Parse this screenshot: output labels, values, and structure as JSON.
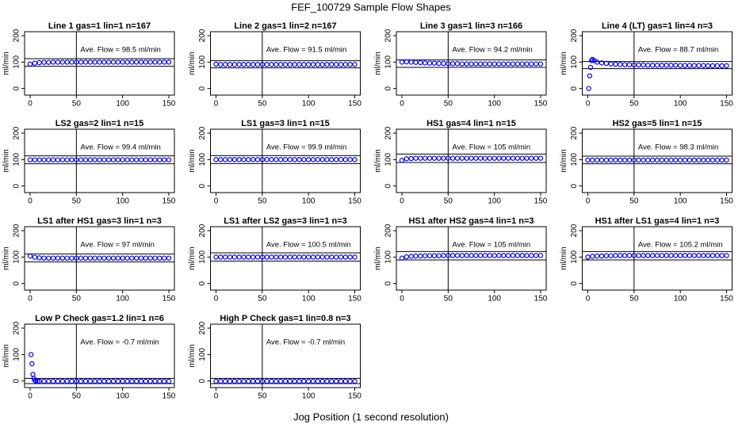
{
  "title": "FEF_100729  Sample Flow Shapes",
  "xlabel": "Jog Position (1 second resolution)",
  "chart_data": [
    {
      "type": "scatter",
      "title": "Line 1 gas=1 lin=1 n=167",
      "annotation": "Ave. Flow = 98.5 ml/min",
      "ylabel": "ml/min",
      "color": "#0000ff",
      "x": [
        0,
        5,
        10,
        15,
        20,
        25,
        30,
        35,
        40,
        45,
        50,
        55,
        60,
        65,
        70,
        75,
        80,
        85,
        90,
        95,
        100,
        105,
        110,
        115,
        120,
        125,
        130,
        135,
        140,
        145,
        150
      ],
      "values": [
        92,
        96,
        98,
        99,
        99,
        100,
        100,
        100,
        100,
        100,
        100,
        100,
        100,
        100,
        100,
        100,
        100,
        100,
        100,
        100,
        100,
        100,
        100,
        100,
        100,
        100,
        100,
        100,
        100,
        100,
        100
      ],
      "xlim": [
        -6,
        156
      ],
      "ylim": [
        -25,
        215
      ],
      "xticks": [
        0,
        50,
        100,
        150
      ],
      "yticks": [
        0,
        100,
        200
      ],
      "vline": 50,
      "hlines": [
        113,
        84
      ]
    },
    {
      "type": "scatter",
      "title": "Line 2 gas=1 lin=2 n=167",
      "annotation": "Ave. Flow = 91.5 ml/min",
      "ylabel": "ml/min",
      "color": "#0000ff",
      "x": [
        0,
        5,
        10,
        15,
        20,
        25,
        30,
        35,
        40,
        45,
        50,
        55,
        60,
        65,
        70,
        75,
        80,
        85,
        90,
        95,
        100,
        105,
        110,
        115,
        120,
        125,
        130,
        135,
        140,
        145,
        150
      ],
      "values": [
        92,
        91,
        91,
        91,
        91,
        91,
        91,
        91,
        91,
        91,
        91,
        91,
        91,
        91,
        91,
        91,
        91,
        91,
        91,
        91,
        91,
        91,
        91,
        91,
        91,
        91,
        91,
        91,
        91,
        91,
        91
      ],
      "xlim": [
        -6,
        156
      ],
      "ylim": [
        -25,
        215
      ],
      "xticks": [
        0,
        50,
        100,
        150
      ],
      "yticks": [
        0,
        100,
        200
      ],
      "vline": 50,
      "hlines": [
        105,
        78
      ]
    },
    {
      "type": "scatter",
      "title": "Line 3 gas=1 lin=3 n=166",
      "annotation": "Ave. Flow = 94.2 ml/min",
      "ylabel": "ml/min",
      "color": "#0000ff",
      "x": [
        0,
        5,
        10,
        15,
        20,
        25,
        30,
        35,
        40,
        45,
        50,
        55,
        60,
        65,
        70,
        75,
        80,
        85,
        90,
        95,
        100,
        105,
        110,
        115,
        120,
        125,
        130,
        135,
        140,
        145,
        150
      ],
      "values": [
        100,
        101,
        100,
        99,
        98,
        97,
        96,
        96,
        95,
        95,
        94,
        94,
        94,
        93,
        93,
        93,
        93,
        93,
        93,
        93,
        93,
        93,
        93,
        93,
        93,
        93,
        93,
        93,
        93,
        93,
        93
      ],
      "xlim": [
        -6,
        156
      ],
      "ylim": [
        -25,
        215
      ],
      "xticks": [
        0,
        50,
        100,
        150
      ],
      "yticks": [
        0,
        100,
        200
      ],
      "vline": 50,
      "hlines": [
        108,
        80
      ]
    },
    {
      "type": "scatter",
      "title": "Line 4 (LT) gas=1 lin=4 n=3",
      "annotation": "Ave. Flow = 88.7 ml/min",
      "ylabel": "ml/min",
      "color": "#0000ff",
      "x": [
        1,
        2,
        3,
        4,
        5,
        7,
        10,
        15,
        20,
        25,
        30,
        35,
        40,
        45,
        50,
        55,
        60,
        65,
        70,
        75,
        80,
        85,
        90,
        95,
        100,
        105,
        110,
        115,
        120,
        125,
        130,
        135,
        140,
        145,
        150
      ],
      "values": [
        0,
        48,
        80,
        106,
        110,
        106,
        100,
        97,
        95,
        93,
        92,
        91,
        90,
        90,
        89,
        89,
        89,
        88,
        88,
        88,
        88,
        88,
        88,
        88,
        87,
        87,
        87,
        87,
        87,
        87,
        86,
        86,
        86,
        86,
        86
      ],
      "xlim": [
        -6,
        156
      ],
      "ylim": [
        -25,
        215
      ],
      "xticks": [
        0,
        50,
        100,
        150
      ],
      "yticks": [
        0,
        100,
        200
      ],
      "vline": 50,
      "hlines": [
        102,
        75
      ]
    },
    {
      "type": "scatter",
      "title": "LS2 gas=2 lin=1 n=15",
      "annotation": "Ave. Flow = 99.4 ml/min",
      "ylabel": "ml/min",
      "color": "#0000ff",
      "x": [
        0,
        5,
        10,
        15,
        20,
        25,
        30,
        35,
        40,
        45,
        50,
        55,
        60,
        65,
        70,
        75,
        80,
        85,
        90,
        95,
        100,
        105,
        110,
        115,
        120,
        125,
        130,
        135,
        140,
        145,
        150
      ],
      "values": [
        99,
        99,
        99,
        99,
        99,
        99,
        99,
        99,
        99,
        99,
        99,
        99,
        99,
        99,
        99,
        99,
        99,
        99,
        99,
        99,
        99,
        99,
        99,
        99,
        99,
        99,
        99,
        99,
        99,
        99,
        99
      ],
      "xlim": [
        -6,
        156
      ],
      "ylim": [
        -25,
        215
      ],
      "xticks": [
        0,
        50,
        100,
        150
      ],
      "yticks": [
        0,
        100,
        200
      ],
      "vline": 50,
      "hlines": [
        114,
        84
      ]
    },
    {
      "type": "scatter",
      "title": "LS1 gas=3 lin=1 n=15",
      "annotation": "Ave. Flow = 99.9 ml/min",
      "ylabel": "ml/min",
      "color": "#0000ff",
      "x": [
        0,
        5,
        10,
        15,
        20,
        25,
        30,
        35,
        40,
        45,
        50,
        55,
        60,
        65,
        70,
        75,
        80,
        85,
        90,
        95,
        100,
        105,
        110,
        115,
        120,
        125,
        130,
        135,
        140,
        145,
        150
      ],
      "values": [
        100,
        100,
        100,
        100,
        100,
        100,
        100,
        100,
        100,
        100,
        100,
        100,
        100,
        100,
        100,
        100,
        100,
        100,
        100,
        100,
        100,
        100,
        100,
        100,
        100,
        100,
        100,
        100,
        100,
        100,
        100
      ],
      "xlim": [
        -6,
        156
      ],
      "ylim": [
        -25,
        215
      ],
      "xticks": [
        0,
        50,
        100,
        150
      ],
      "yticks": [
        0,
        100,
        200
      ],
      "vline": 50,
      "hlines": [
        115,
        85
      ]
    },
    {
      "type": "scatter",
      "title": "HS1 gas=4 lin=1 n=15",
      "annotation": "Ave. Flow = 105 ml/min",
      "ylabel": "ml/min",
      "color": "#0000ff",
      "x": [
        0,
        5,
        10,
        15,
        20,
        25,
        30,
        35,
        40,
        45,
        50,
        55,
        60,
        65,
        70,
        75,
        80,
        85,
        90,
        95,
        100,
        105,
        110,
        115,
        120,
        125,
        130,
        135,
        140,
        145,
        150
      ],
      "values": [
        97,
        103,
        104,
        105,
        105,
        105,
        105,
        105,
        105,
        105,
        105,
        105,
        105,
        105,
        105,
        105,
        105,
        105,
        105,
        105,
        105,
        105,
        105,
        105,
        105,
        105,
        105,
        105,
        105,
        105,
        105
      ],
      "xlim": [
        -6,
        156
      ],
      "ylim": [
        -25,
        215
      ],
      "xticks": [
        0,
        50,
        100,
        150
      ],
      "yticks": [
        0,
        100,
        200
      ],
      "vline": 50,
      "hlines": [
        121,
        89
      ]
    },
    {
      "type": "scatter",
      "title": "HS2 gas=5 lin=1 n=15",
      "annotation": "Ave. Flow = 98.3 ml/min",
      "ylabel": "ml/min",
      "color": "#0000ff",
      "x": [
        0,
        5,
        10,
        15,
        20,
        25,
        30,
        35,
        40,
        45,
        50,
        55,
        60,
        65,
        70,
        75,
        80,
        85,
        90,
        95,
        100,
        105,
        110,
        115,
        120,
        125,
        130,
        135,
        140,
        145,
        150
      ],
      "values": [
        98,
        98,
        98,
        98,
        98,
        98,
        98,
        98,
        98,
        98,
        98,
        98,
        98,
        98,
        98,
        98,
        98,
        98,
        98,
        98,
        98,
        98,
        98,
        98,
        98,
        98,
        98,
        98,
        98,
        98,
        98
      ],
      "xlim": [
        -6,
        156
      ],
      "ylim": [
        -25,
        215
      ],
      "xticks": [
        0,
        50,
        100,
        150
      ],
      "yticks": [
        0,
        100,
        200
      ],
      "vline": 50,
      "hlines": [
        113,
        84
      ]
    },
    {
      "type": "scatter",
      "title": "LS1 after HS1 gas=3 lin=1 n=3",
      "annotation": "Ave. Flow = 97 ml/min",
      "ylabel": "ml/min",
      "color": "#0000ff",
      "x": [
        0,
        5,
        10,
        15,
        20,
        25,
        30,
        35,
        40,
        45,
        50,
        55,
        60,
        65,
        70,
        75,
        80,
        85,
        90,
        95,
        100,
        105,
        110,
        115,
        120,
        125,
        130,
        135,
        140,
        145,
        150
      ],
      "values": [
        104,
        99,
        97,
        96,
        96,
        96,
        96,
        96,
        96,
        96,
        96,
        96,
        96,
        96,
        96,
        96,
        96,
        96,
        96,
        96,
        96,
        96,
        96,
        96,
        96,
        96,
        96,
        96,
        96,
        96,
        96
      ],
      "xlim": [
        -6,
        156
      ],
      "ylim": [
        -25,
        215
      ],
      "xticks": [
        0,
        50,
        100,
        150
      ],
      "yticks": [
        0,
        100,
        200
      ],
      "vline": 50,
      "hlines": [
        112,
        82
      ]
    },
    {
      "type": "scatter",
      "title": "LS1 after LS2 gas=3 lin=1 n=3",
      "annotation": "Ave. Flow = 100.5 ml/min",
      "ylabel": "ml/min",
      "color": "#0000ff",
      "x": [
        0,
        5,
        10,
        15,
        20,
        25,
        30,
        35,
        40,
        45,
        50,
        55,
        60,
        65,
        70,
        75,
        80,
        85,
        90,
        95,
        100,
        105,
        110,
        115,
        120,
        125,
        130,
        135,
        140,
        145,
        150
      ],
      "values": [
        100,
        100,
        100,
        100,
        100,
        100,
        100,
        100,
        100,
        100,
        100,
        100,
        100,
        100,
        100,
        100,
        100,
        100,
        100,
        100,
        100,
        100,
        100,
        100,
        100,
        100,
        100,
        100,
        100,
        100,
        100
      ],
      "xlim": [
        -6,
        156
      ],
      "ylim": [
        -25,
        215
      ],
      "xticks": [
        0,
        50,
        100,
        150
      ],
      "yticks": [
        0,
        100,
        200
      ],
      "vline": 50,
      "hlines": [
        116,
        85
      ]
    },
    {
      "type": "scatter",
      "title": "HS1 after HS2 gas=4 lin=1 n=3",
      "annotation": "Ave. Flow = 105 ml/min",
      "ylabel": "ml/min",
      "color": "#0000ff",
      "x": [
        0,
        5,
        10,
        15,
        20,
        25,
        30,
        35,
        40,
        45,
        50,
        55,
        60,
        65,
        70,
        75,
        80,
        85,
        90,
        95,
        100,
        105,
        110,
        115,
        120,
        125,
        130,
        135,
        140,
        145,
        150
      ],
      "values": [
        96,
        101,
        103,
        104,
        104,
        105,
        105,
        105,
        105,
        106,
        106,
        106,
        106,
        106,
        106,
        106,
        106,
        106,
        106,
        106,
        106,
        106,
        106,
        106,
        106,
        106,
        106,
        106,
        106,
        106,
        106
      ],
      "xlim": [
        -6,
        156
      ],
      "ylim": [
        -25,
        215
      ],
      "xticks": [
        0,
        50,
        100,
        150
      ],
      "yticks": [
        0,
        100,
        200
      ],
      "vline": 50,
      "hlines": [
        121,
        89
      ]
    },
    {
      "type": "scatter",
      "title": "HS1 after LS1 gas=4 lin=1 n=3",
      "annotation": "Ave. Flow = 105.2 ml/min",
      "ylabel": "ml/min",
      "color": "#0000ff",
      "x": [
        0,
        5,
        10,
        15,
        20,
        25,
        30,
        35,
        40,
        45,
        50,
        55,
        60,
        65,
        70,
        75,
        80,
        85,
        90,
        95,
        100,
        105,
        110,
        115,
        120,
        125,
        130,
        135,
        140,
        145,
        150
      ],
      "values": [
        100,
        103,
        104,
        104,
        105,
        105,
        106,
        106,
        106,
        106,
        106,
        106,
        106,
        106,
        106,
        106,
        106,
        106,
        106,
        106,
        106,
        106,
        106,
        106,
        106,
        106,
        106,
        106,
        106,
        106,
        106
      ],
      "xlim": [
        -6,
        156
      ],
      "ylim": [
        -25,
        215
      ],
      "xticks": [
        0,
        50,
        100,
        150
      ],
      "yticks": [
        0,
        100,
        200
      ],
      "vline": 50,
      "hlines": [
        121,
        89
      ]
    },
    {
      "type": "scatter",
      "title": "Low P Check gas=1.2 lin=1 n=6",
      "annotation": "Ave. Flow = -0.7 ml/min",
      "ylabel": "ml/min",
      "color": "#0000ff",
      "x": [
        1,
        2,
        3,
        4,
        5,
        6,
        8,
        10,
        15,
        20,
        25,
        30,
        35,
        40,
        45,
        50,
        55,
        60,
        65,
        70,
        75,
        80,
        85,
        90,
        95,
        100,
        105,
        110,
        115,
        120,
        125,
        130,
        135,
        140,
        145,
        150
      ],
      "values": [
        100,
        65,
        25,
        10,
        3,
        0,
        -1,
        -1,
        -1,
        -1,
        -1,
        -1,
        -1,
        -1,
        -1,
        -1,
        -1,
        -1,
        -1,
        -1,
        -1,
        -1,
        -1,
        -1,
        -1,
        -1,
        -1,
        -1,
        -1,
        -1,
        -1,
        -1,
        -1,
        -1,
        -1,
        -1
      ],
      "xlim": [
        -6,
        156
      ],
      "ylim": [
        -25,
        215
      ],
      "xticks": [
        0,
        50,
        100,
        150
      ],
      "yticks": [
        0,
        100,
        200
      ],
      "vline": 50,
      "hlines": [
        10,
        -10
      ]
    },
    {
      "type": "scatter",
      "title": "High P Check gas=1 lin=0.8 n=3",
      "annotation": "Ave. Flow = -0.7 ml/min",
      "ylabel": "ml/min",
      "color": "#0000ff",
      "x": [
        0,
        5,
        10,
        15,
        20,
        25,
        30,
        35,
        40,
        45,
        50,
        55,
        60,
        65,
        70,
        75,
        80,
        85,
        90,
        95,
        100,
        105,
        110,
        115,
        120,
        125,
        130,
        135,
        140,
        145,
        150
      ],
      "values": [
        -1,
        -1,
        -1,
        -1,
        -1,
        -1,
        -1,
        -1,
        -1,
        -1,
        -1,
        -1,
        -1,
        -1,
        -1,
        -1,
        -1,
        -1,
        -1,
        -1,
        -1,
        -1,
        -1,
        -1,
        -1,
        -1,
        -1,
        -1,
        -1,
        -1,
        -1
      ],
      "xlim": [
        -6,
        156
      ],
      "ylim": [
        -25,
        215
      ],
      "xticks": [
        0,
        50,
        100,
        150
      ],
      "yticks": [
        0,
        100,
        200
      ],
      "vline": 50,
      "hlines": [
        10,
        -10
      ]
    }
  ]
}
